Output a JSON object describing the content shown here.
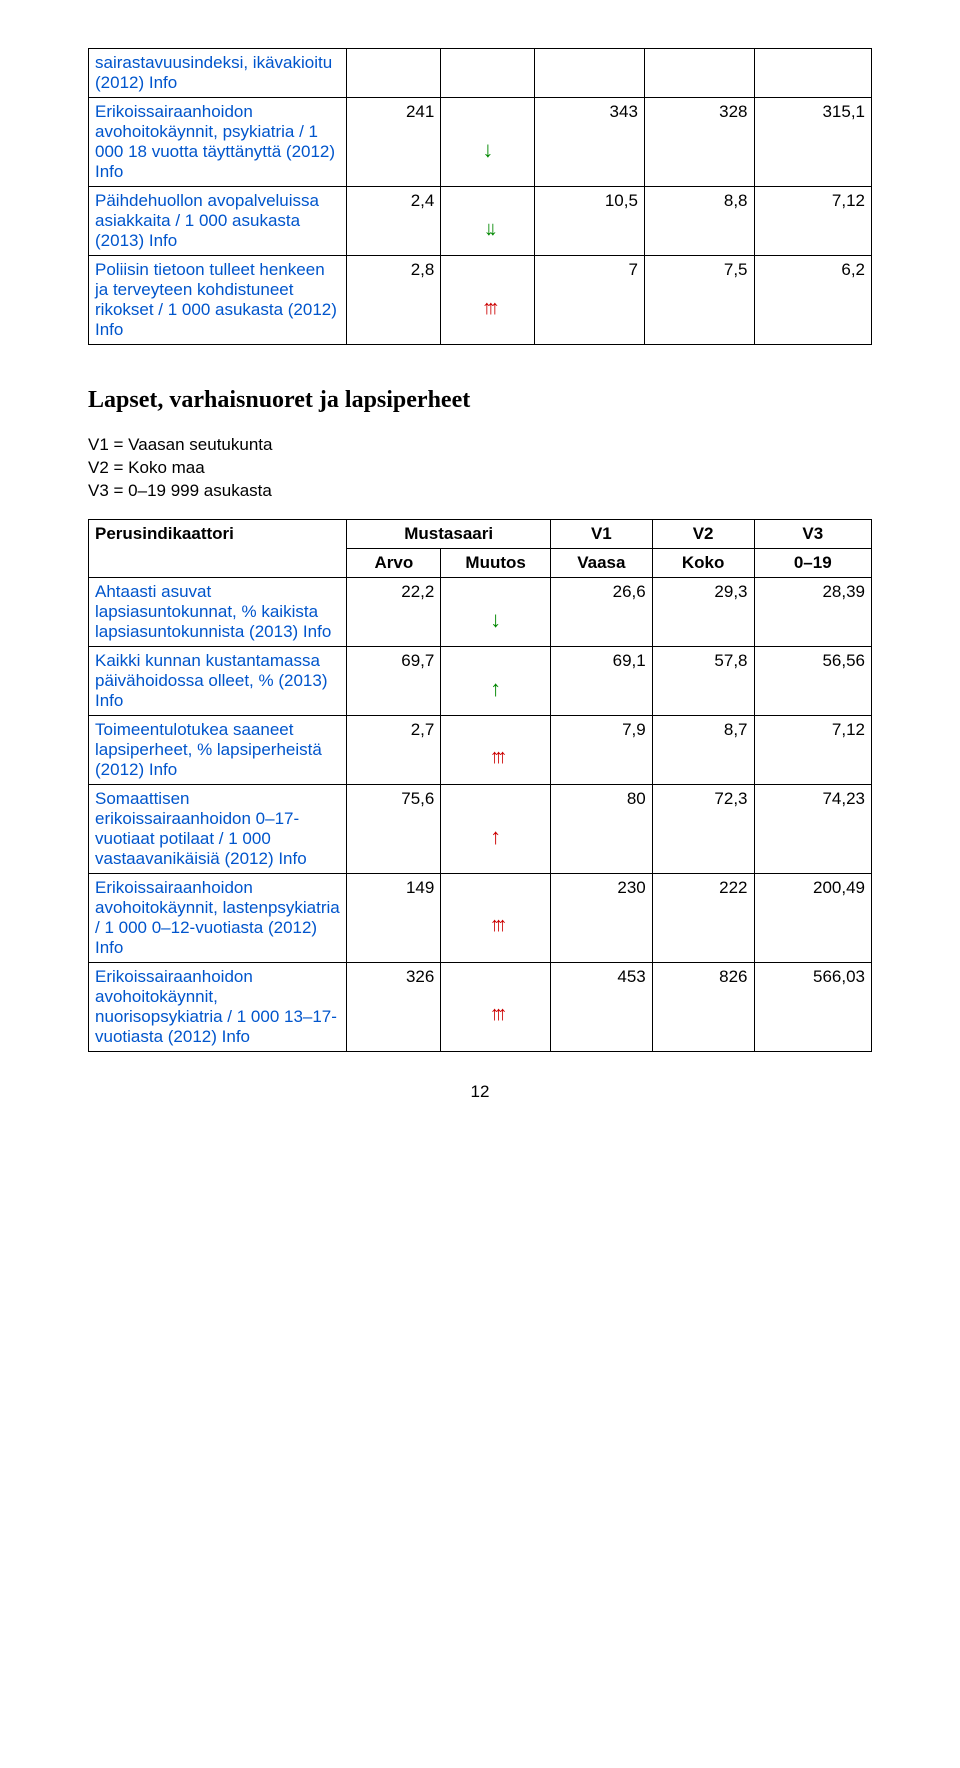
{
  "link_color": "#0055cc",
  "arrow_green": "#008800",
  "arrow_red": "#cc0000",
  "table1": {
    "rows": [
      {
        "label_parts": [
          "sairastavuusindeksi, ikävakioitu (2012) ",
          "Info"
        ],
        "arvo": "",
        "muutos_icon": "",
        "v1": "",
        "v2": "",
        "v3": ""
      },
      {
        "label_parts": [
          "Erikoissairaanhoidon avohoitokäynnit, psykiatria / 1 000 18 vuotta täyttänyttä (2012) ",
          "Info"
        ],
        "arvo": "241",
        "muutos_icon": "arrow-down-g",
        "v1": "343",
        "v2": "328",
        "v3": "315,1"
      },
      {
        "label_parts": [
          "Päihdehuollon avopalveluissa asiakkaita / 1 000 asukasta (2013) ",
          "Info"
        ],
        "arvo": "2,4",
        "muutos_icon": "arrow-ddown-g",
        "v1": "10,5",
        "v2": "8,8",
        "v3": "7,12"
      },
      {
        "label_parts": [
          "Poliisin tietoon tulleet henkeen ja terveyteen kohdistuneet rikokset / 1 000 asukasta (2012) ",
          "Info"
        ],
        "arvo": "2,8",
        "muutos_icon": "arrow-3up-r",
        "v1": "7",
        "v2": "7,5",
        "v3": "6,2"
      }
    ]
  },
  "section_title": "Lapset, varhaisnuoret ja lapsiperheet",
  "legend": {
    "l1": "V1 = Vaasan seutukunta",
    "l2": "V2 = Koko maa",
    "l3": "V3 = 0–19 999 asukasta"
  },
  "table2": {
    "headers": {
      "perus": "Perusindikaattori",
      "mustasaari": "Mustasaari",
      "arvo": "Arvo",
      "muutos": "Muutos",
      "v1a": "V1",
      "v1b": "Vaasa",
      "v2a": "V2",
      "v2b": "Koko",
      "v3a": "V3",
      "v3b": "0–19"
    },
    "rows": [
      {
        "label_parts": [
          "Ahtaasti asuvat lapsiasuntokunnat, % kaikista lapsiasuntokunnista (2013) ",
          "Info"
        ],
        "arvo": "22,2",
        "muutos_icon": "arrow-down-g",
        "v1": "26,6",
        "v2": "29,3",
        "v3": "28,39"
      },
      {
        "label_parts": [
          "Kaikki kunnan kustantamassa päivähoidossa olleet, % (2013) ",
          "Info"
        ],
        "arvo": "69,7",
        "muutos_icon": "arrow-up-g",
        "v1": "69,1",
        "v2": "57,8",
        "v3": "56,56"
      },
      {
        "label_parts": [
          "Toimeentulotukea saaneet lapsiperheet, % lapsiperheistä (2012) ",
          "Info"
        ],
        "arvo": "2,7",
        "muutos_icon": "arrow-3up-r",
        "v1": "7,9",
        "v2": "8,7",
        "v3": "7,12"
      },
      {
        "label_parts": [
          "Somaattisen erikoissairaanhoidon 0–17-vuotiaat potilaat / 1 000 vastaavanikäisiä (2012) ",
          "Info"
        ],
        "arvo": "75,6",
        "muutos_icon": "arrow-up-r",
        "v1": "80",
        "v2": "72,3",
        "v3": "74,23"
      },
      {
        "label_parts": [
          "Erikoissairaanhoidon avohoitokäynnit, lastenpsykiatria / 1 000 0–12-vuotiasta (2012) ",
          "Info"
        ],
        "arvo": "149",
        "muutos_icon": "arrow-3up-r",
        "v1": "230",
        "v2": "222",
        "v3": "200,49"
      },
      {
        "label_parts": [
          "Erikoissairaanhoidon avohoitokäynnit, nuorisopsykiatria / 1 000 13–17-vuotiasta (2012) ",
          "Info"
        ],
        "arvo": "326",
        "muutos_icon": "arrow-3up-r",
        "v1": "453",
        "v2": "826",
        "v3": "566,03"
      }
    ]
  },
  "page_number": "12"
}
